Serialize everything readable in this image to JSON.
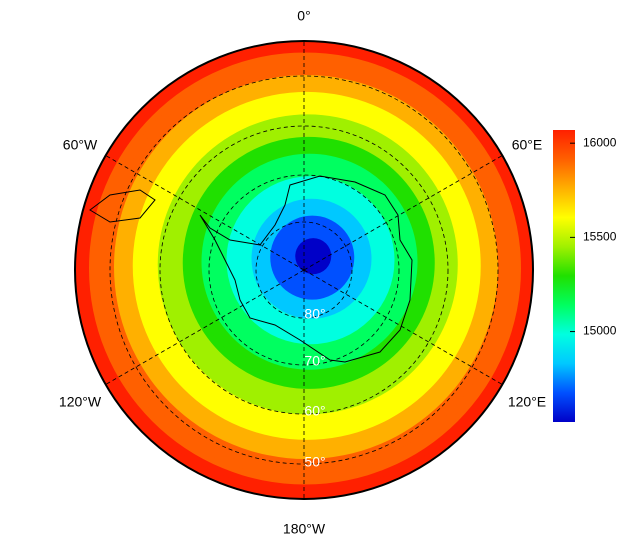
{
  "map": {
    "longitude_labels": [
      "0°",
      "60°E",
      "120°E",
      "180°W",
      "120°W",
      "60°W"
    ],
    "latitude_labels": [
      "80°",
      "70°",
      "60°",
      "50°"
    ],
    "colorbar": {
      "lim": [
        14520,
        16070
      ],
      "ticks": [
        15000,
        15500,
        16000
      ]
    },
    "colormap": [
      "#0000c8",
      "#0050ff",
      "#00c8ff",
      "#00ffe0",
      "#00ff60",
      "#20e000",
      "#a0f000",
      "#ffff00",
      "#ffb000",
      "#ff6000",
      "#ff2000"
    ]
  }
}
